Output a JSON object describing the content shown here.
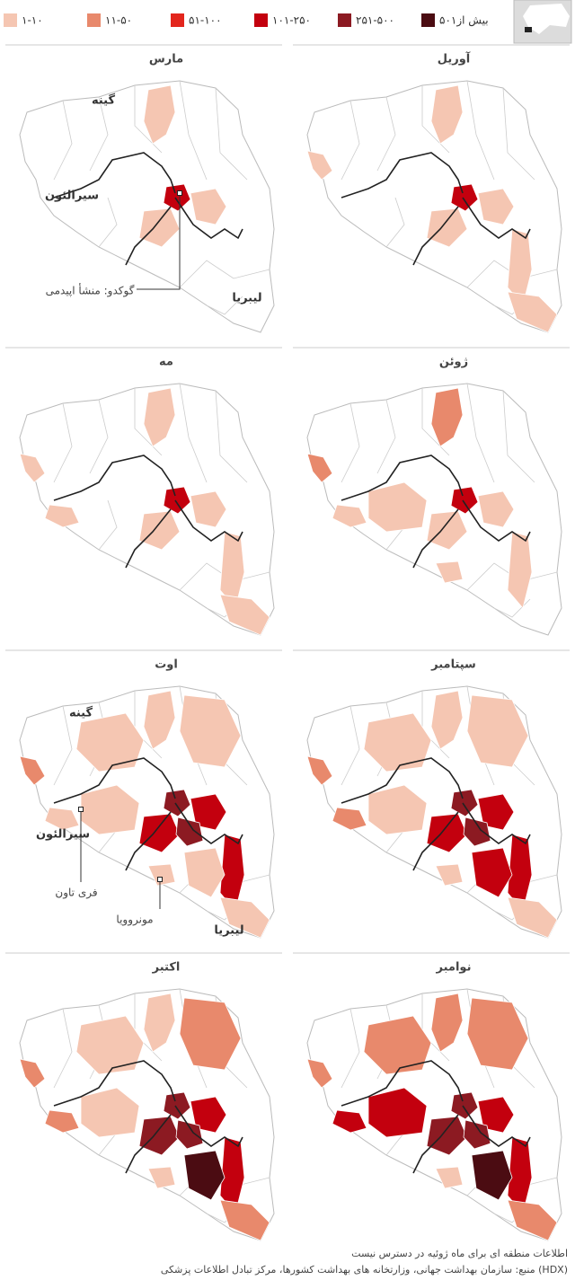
{
  "legend": {
    "items": [
      {
        "label": "۱-۱۰",
        "color": "#f5c6b2"
      },
      {
        "label": "۱۱-۵۰",
        "color": "#e8896c"
      },
      {
        "label": "۵۱-۱۰۰",
        "color": "#e3261d"
      },
      {
        "label": "۱۰۱-۲۵۰",
        "color": "#c3000e"
      },
      {
        "label": "۲۵۱-۵۰۰",
        "color": "#8c1a22"
      },
      {
        "label": "بیش از۵۰۱",
        "color": "#4b0c12"
      }
    ]
  },
  "panels": [
    {
      "title": "مارس",
      "labels": [
        "گینه",
        "سیرالئون",
        "لیبریا",
        "گوکدو: منشأ اپیدمی"
      ]
    },
    {
      "title": "آوریل"
    },
    {
      "title": "مه"
    },
    {
      "title": "ژوئن"
    },
    {
      "title": "اوت",
      "labels": [
        "گینه",
        "سیرالئون",
        "لیبریا",
        "فری تاون",
        "مونروویا"
      ]
    },
    {
      "title": "سپتامبر"
    },
    {
      "title": "اکتبر"
    },
    {
      "title": "نوامبر"
    }
  ],
  "footer": {
    "note": "اطلاعات منطقه ای برای ماه ژوئیه در دسترس نیست",
    "source": "منبع: سازمان بهداشت جهانی، وزارتخانه های بهداشت کشورها، مرکز تبادل اطلاعات پزشکی (HDX)"
  }
}
